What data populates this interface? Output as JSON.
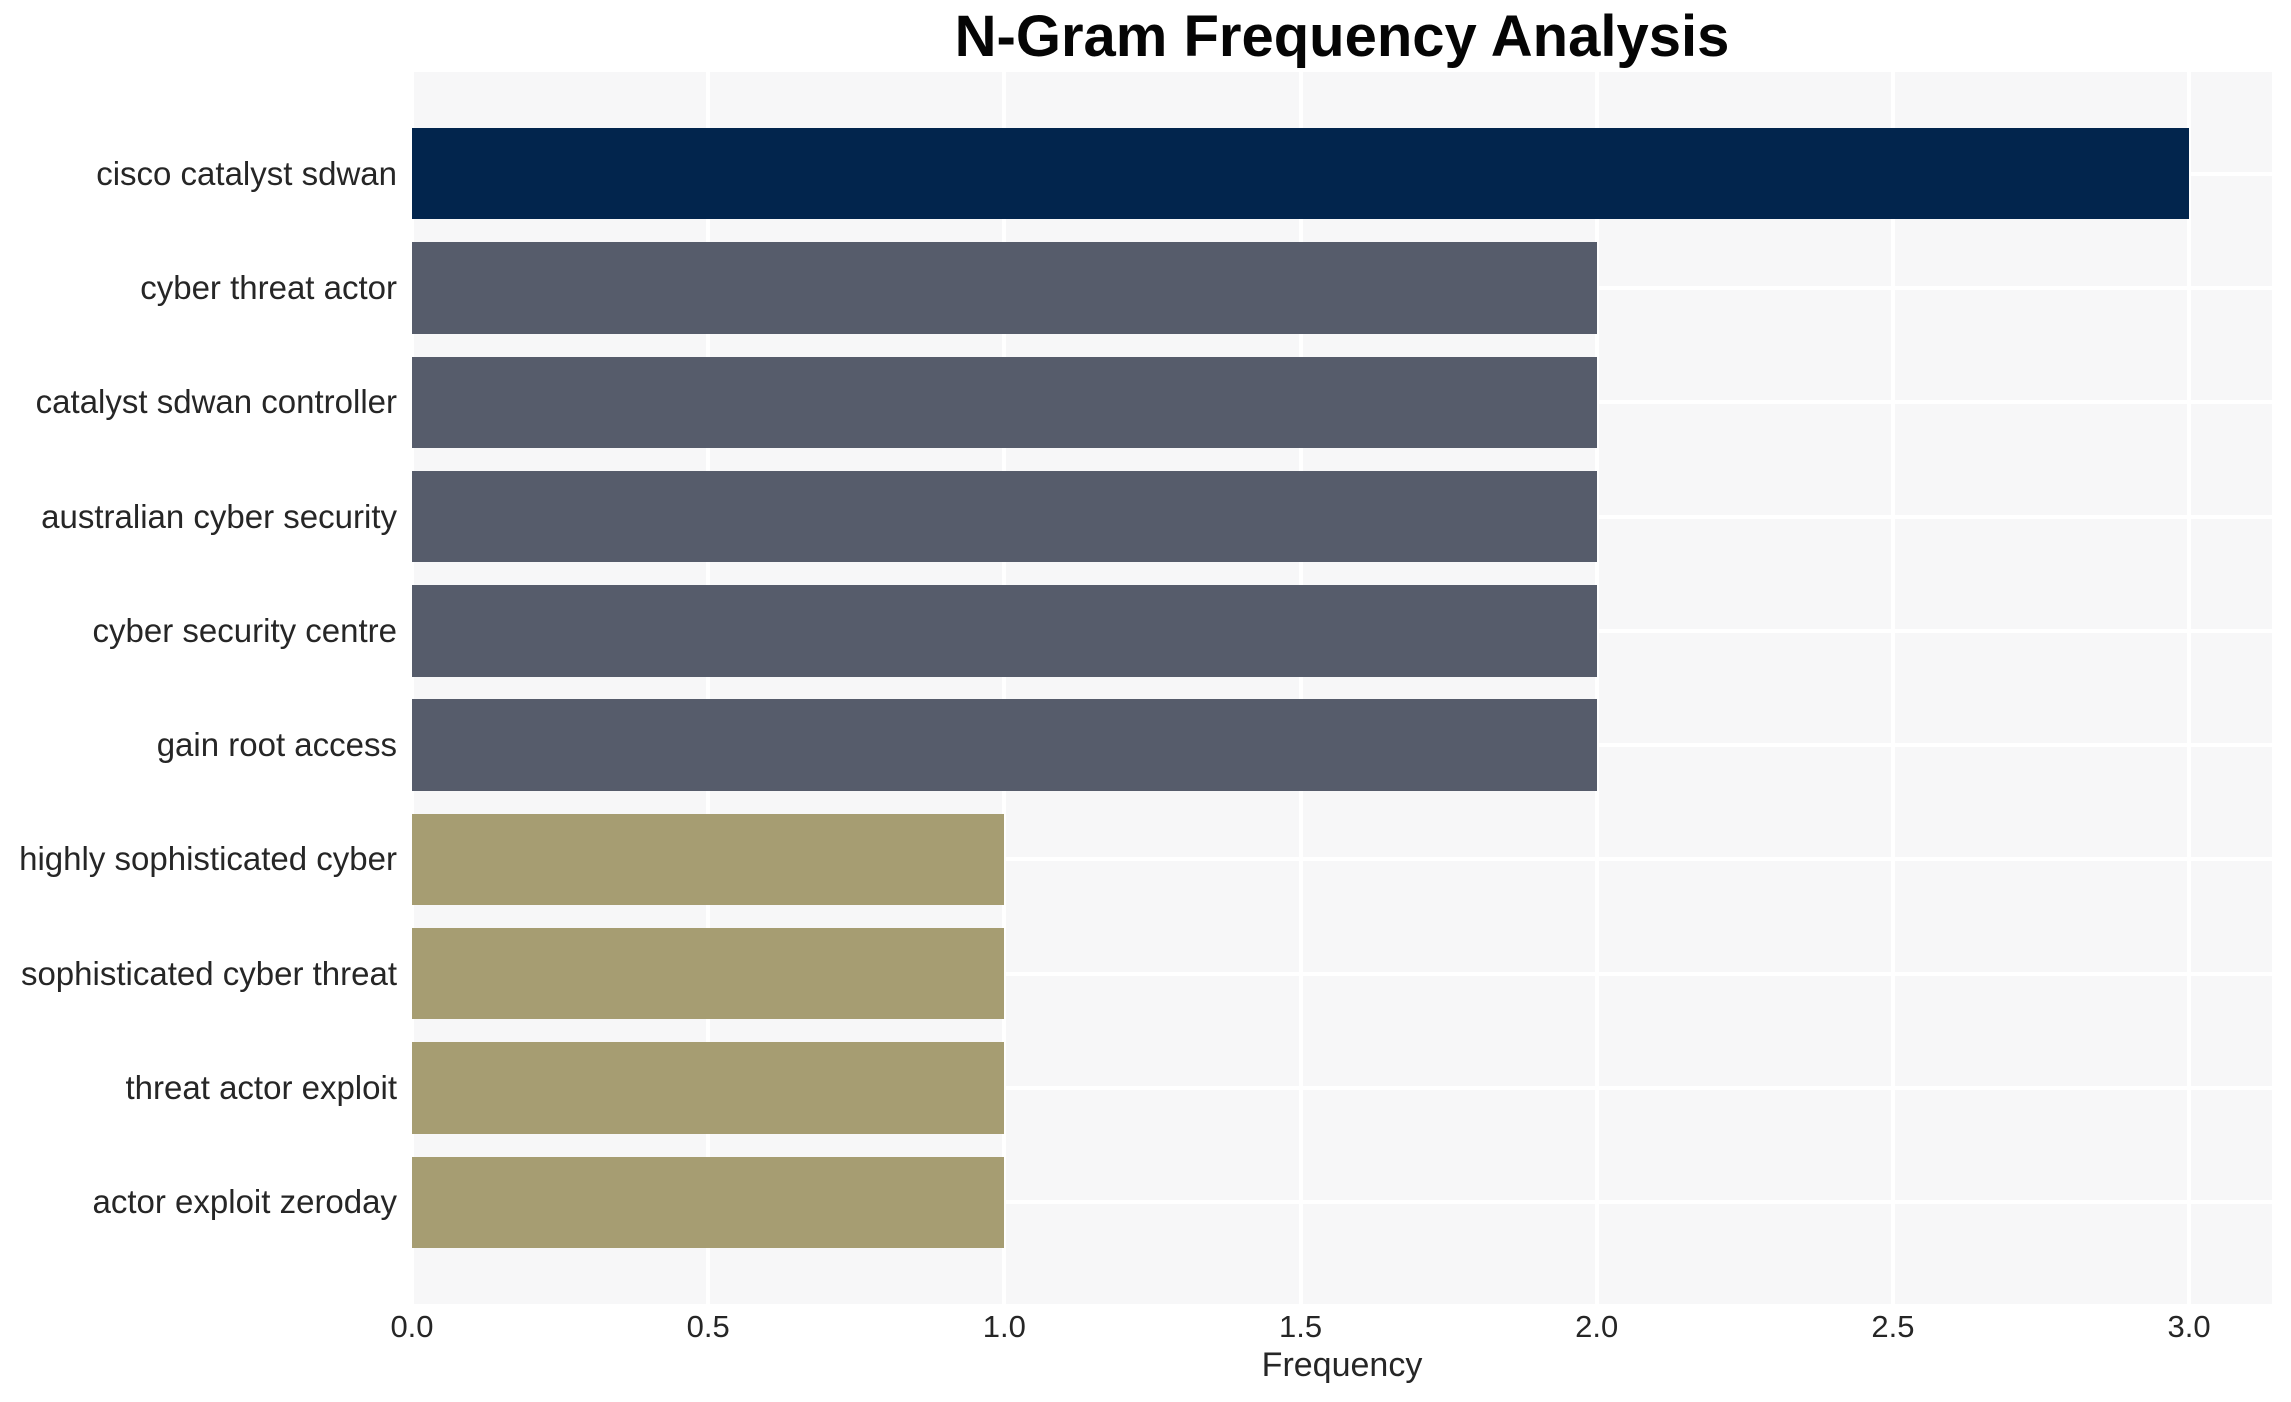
{
  "chart_data": {
    "type": "bar",
    "orientation": "horizontal",
    "title": "N-Gram Frequency Analysis",
    "xlabel": "Frequency",
    "ylabel": "",
    "categories": [
      "cisco catalyst sdwan",
      "cyber threat actor",
      "catalyst sdwan controller",
      "australian cyber security",
      "cyber security centre",
      "gain root access",
      "highly sophisticated cyber",
      "sophisticated cyber threat",
      "threat actor exploit",
      "actor exploit zeroday"
    ],
    "values": [
      3,
      2,
      2,
      2,
      2,
      2,
      1,
      1,
      1,
      1
    ],
    "bar_colors": [
      "#02254d",
      "#565c6b",
      "#565c6b",
      "#565c6b",
      "#565c6b",
      "#565c6b",
      "#a69d72",
      "#a69d72",
      "#a69d72",
      "#a69d72"
    ],
    "xlim": [
      0,
      3.14
    ],
    "xticks": [
      0.0,
      0.5,
      1.0,
      1.5,
      2.0,
      2.5,
      3.0
    ],
    "xtick_labels": [
      "0.0",
      "0.5",
      "1.0",
      "1.5",
      "2.0",
      "2.5",
      "3.0"
    ],
    "grid": true,
    "gridline_color": "#ffffff",
    "plot_background": "#f7f7f8",
    "figure_background": "#ffffff",
    "tick_label_color": "#262626",
    "title_color": "#050505",
    "legend_position": "none"
  }
}
